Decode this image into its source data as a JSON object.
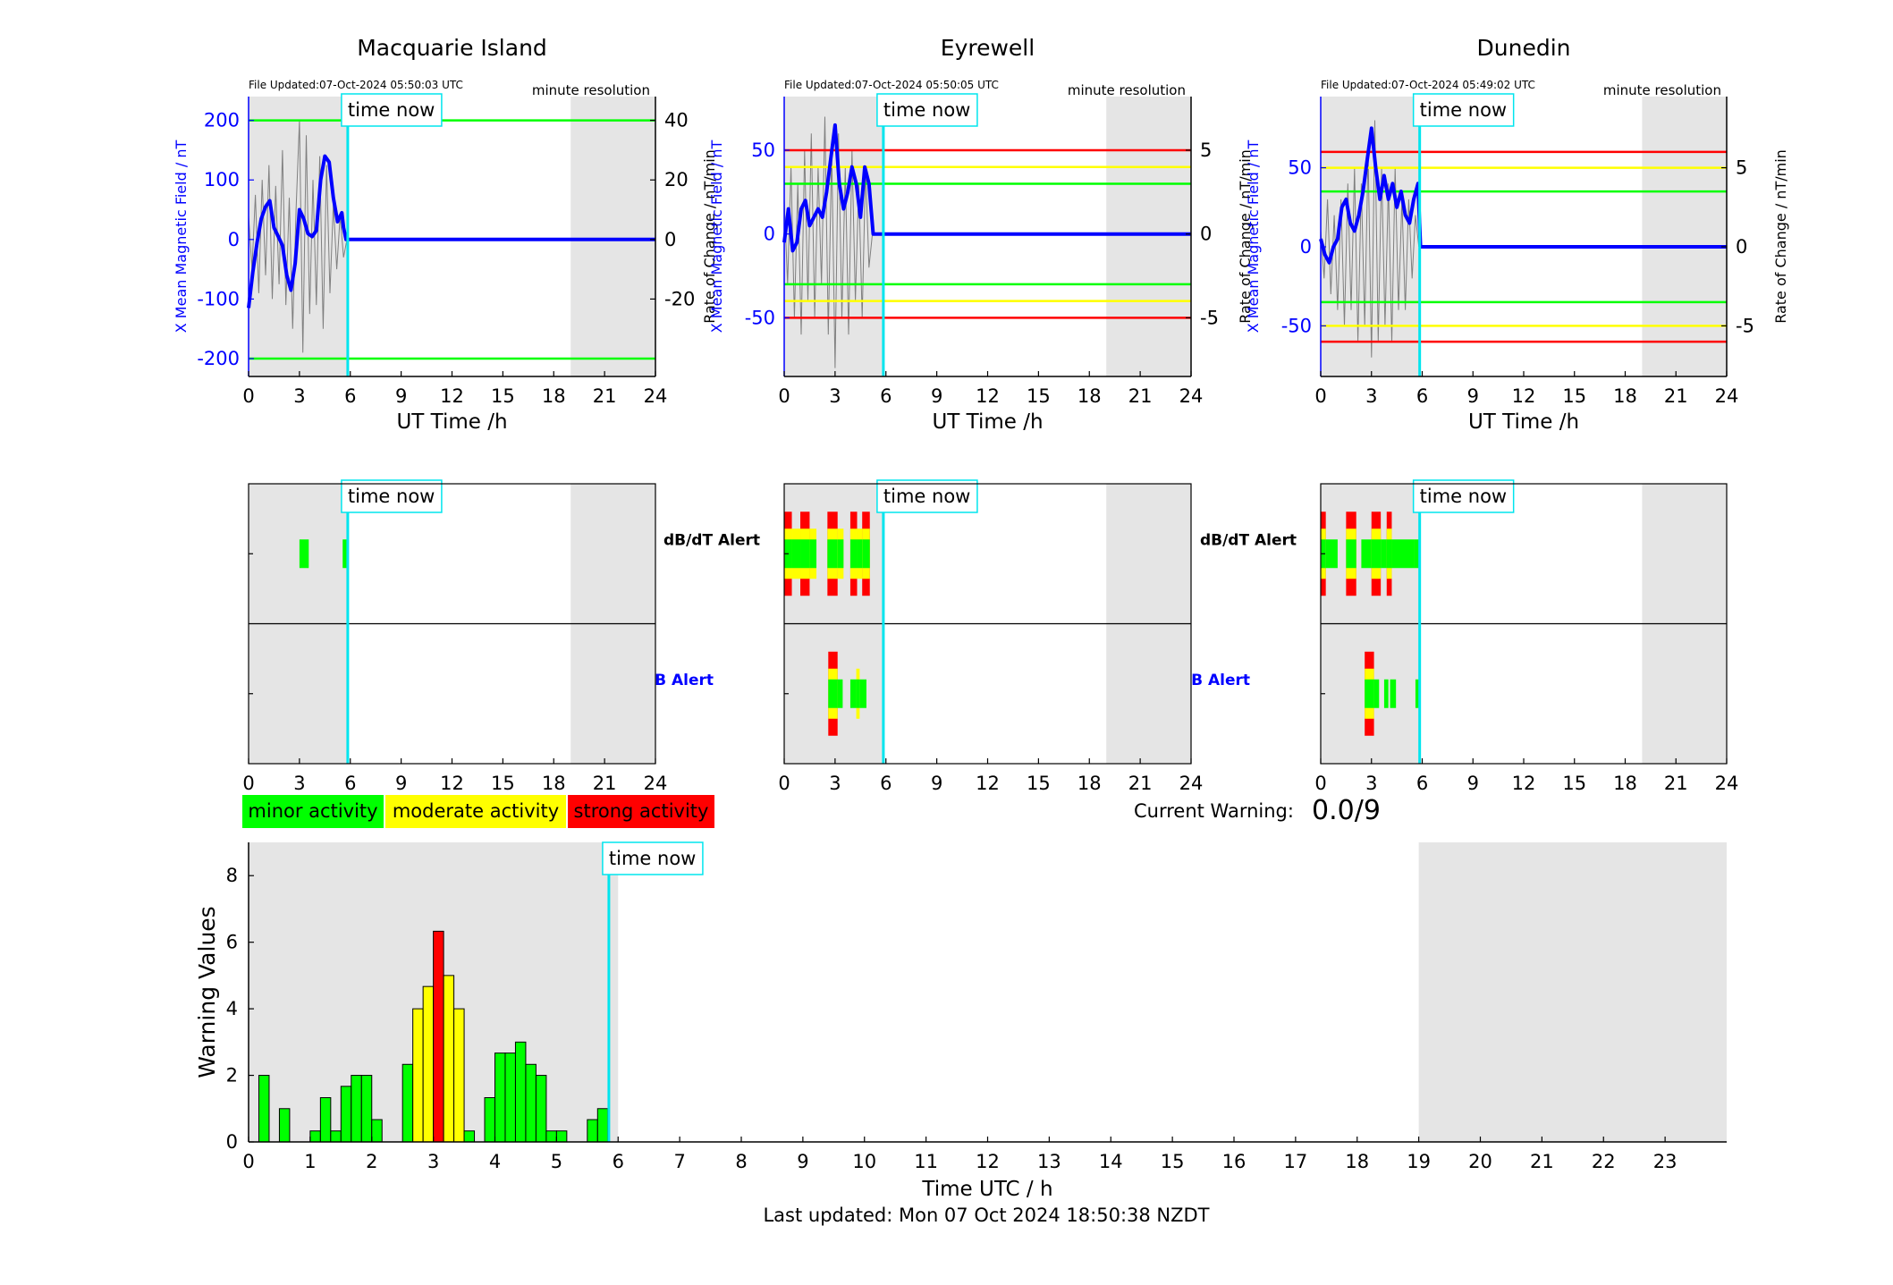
{
  "colors": {
    "grey": "#e5e5e5",
    "blue": "#0000ff",
    "cyan": "#00e5ee",
    "green": "#00ff00",
    "yellow": "#ffff00",
    "red": "#ff0000",
    "black": "#000000"
  },
  "top_labels": {
    "file_prefix": "File Updated:",
    "resolution": "minute resolution",
    "time_now": "time now",
    "xlabel": "UT Time /h",
    "ylabel_left": "X Mean Magnetic Field / nT",
    "ylabel_right": "Rate of Change / nT/min"
  },
  "alert_labels": {
    "dbdt": "dB/dT Alert",
    "b": "B Alert"
  },
  "legend": {
    "minor": "minor activity",
    "moderate": "moderate activity",
    "strong": "strong activity"
  },
  "warning": {
    "label": "Current Warning:",
    "value": "0.0/9"
  },
  "footer": {
    "last_updated": "Last updated: Mon 07 Oct 2024 18:50:38 NZDT"
  },
  "chart_data": [
    {
      "type": "line",
      "title": "Macquarie Island",
      "file_updated": "07-Oct-2024 05:50:03 UTC",
      "xlabel": "UT Time /h",
      "xlim": [
        0,
        24
      ],
      "xticks": [
        0,
        3,
        6,
        9,
        12,
        15,
        18,
        21,
        24
      ],
      "ylabel_left": "X Mean Magnetic Field / nT",
      "ylim_left": [
        -230,
        240
      ],
      "yticks_left": [
        -200,
        -100,
        0,
        100,
        200
      ],
      "ylabel_right": "Rate of Change / nT/min",
      "ylim_right": [
        -46,
        48
      ],
      "yticks_right": [
        -20,
        0,
        20,
        40
      ],
      "time_now": 5.85,
      "shaded_h": [
        [
          0,
          5.85
        ],
        [
          19,
          24
        ]
      ],
      "thresholds": [
        {
          "value": 200,
          "color": "green"
        },
        {
          "value": -200,
          "color": "green"
        }
      ],
      "series": [
        {
          "axis": "left",
          "color": "blue",
          "x": [
            0,
            0.25,
            0.5,
            0.75,
            1.0,
            1.25,
            1.5,
            1.75,
            2.0,
            2.25,
            2.5,
            2.75,
            3.0,
            3.25,
            3.5,
            3.75,
            4.0,
            4.25,
            4.5,
            4.75,
            5.0,
            5.25,
            5.5,
            5.6,
            5.75,
            5.85,
            6.0,
            24.0
          ],
          "y": [
            -115,
            -55,
            -5,
            35,
            55,
            65,
            20,
            5,
            -10,
            -60,
            -85,
            -40,
            50,
            35,
            10,
            5,
            15,
            100,
            140,
            130,
            70,
            30,
            45,
            20,
            0,
            0,
            0,
            0
          ]
        },
        {
          "axis": "right",
          "color": "grey",
          "x": [
            0.0,
            0.2,
            0.4,
            0.6,
            0.8,
            1.0,
            1.2,
            1.4,
            1.6,
            1.8,
            2.0,
            2.2,
            2.4,
            2.6,
            2.8,
            3.0,
            3.2,
            3.4,
            3.6,
            3.8,
            4.0,
            4.2,
            4.4,
            4.6,
            4.8,
            5.0,
            5.2,
            5.4,
            5.6,
            5.8
          ],
          "y": [
            8,
            -10,
            15,
            -18,
            20,
            -12,
            25,
            -20,
            18,
            -15,
            30,
            -22,
            14,
            -30,
            10,
            40,
            -38,
            35,
            -25,
            20,
            -22,
            28,
            -30,
            25,
            -18,
            12,
            -10,
            8,
            -6,
            0
          ]
        }
      ]
    },
    {
      "type": "line",
      "title": "Eyrewell",
      "file_updated": "07-Oct-2024 05:50:05 UTC",
      "xlabel": "UT Time /h",
      "xlim": [
        0,
        24
      ],
      "xticks": [
        0,
        3,
        6,
        9,
        12,
        15,
        18,
        21,
        24
      ],
      "ylabel_left": "X Mean Magnetic Field / nT",
      "ylim_left": [
        -85,
        82
      ],
      "yticks_left": [
        -50,
        0,
        50
      ],
      "ylabel_right": "Rate of Change / nT/min",
      "ylim_right": [
        -8.5,
        8.2
      ],
      "yticks_right": [
        -5,
        0,
        5
      ],
      "time_now": 5.85,
      "shaded_h": [
        [
          0,
          5.85
        ],
        [
          19,
          24
        ]
      ],
      "thresholds": [
        {
          "value": 50,
          "color": "red"
        },
        {
          "value": 40,
          "color": "yellow"
        },
        {
          "value": 30,
          "color": "green"
        },
        {
          "value": -30,
          "color": "green"
        },
        {
          "value": -40,
          "color": "yellow"
        },
        {
          "value": -50,
          "color": "red"
        }
      ],
      "series": [
        {
          "axis": "left",
          "color": "blue",
          "x": [
            0,
            0.25,
            0.5,
            0.75,
            1.0,
            1.25,
            1.5,
            1.75,
            2.0,
            2.25,
            2.5,
            2.75,
            3.0,
            3.25,
            3.5,
            3.75,
            4.0,
            4.25,
            4.5,
            4.75,
            5.0,
            5.25,
            6.0,
            24.0
          ],
          "y": [
            -5,
            15,
            -10,
            -5,
            15,
            20,
            5,
            10,
            15,
            10,
            25,
            45,
            65,
            30,
            15,
            25,
            40,
            30,
            10,
            40,
            30,
            0,
            0,
            0
          ]
        },
        {
          "axis": "right",
          "color": "grey",
          "x": [
            0.0,
            0.2,
            0.4,
            0.6,
            0.8,
            1.0,
            1.2,
            1.4,
            1.6,
            1.8,
            2.0,
            2.2,
            2.4,
            2.6,
            2.8,
            3.0,
            3.2,
            3.4,
            3.6,
            3.8,
            4.0,
            4.2,
            4.4,
            4.6,
            4.8,
            5.0,
            5.2
          ],
          "y": [
            2,
            -3,
            4,
            -5,
            3,
            -6,
            5,
            -4,
            6,
            -5,
            4,
            -3,
            7,
            -6,
            5,
            -8,
            6,
            -5,
            4,
            -6,
            5,
            -4,
            3,
            -5,
            4,
            -2,
            0
          ]
        }
      ]
    },
    {
      "type": "line",
      "title": "Dunedin",
      "file_updated": "07-Oct-2024 05:49:02 UTC",
      "xlabel": "UT Time /h",
      "xlim": [
        0,
        24
      ],
      "xticks": [
        0,
        3,
        6,
        9,
        12,
        15,
        18,
        21,
        24
      ],
      "ylabel_left": "X Mean Magnetic Field / nT",
      "ylim_left": [
        -82,
        95
      ],
      "yticks_left": [
        -50,
        0,
        50
      ],
      "ylabel_right": "Rate of Change / nT/min",
      "ylim_right": [
        -8.2,
        9.5
      ],
      "yticks_right": [
        -5,
        0,
        5
      ],
      "time_now": 5.85,
      "shaded_h": [
        [
          0,
          5.85
        ],
        [
          19,
          24
        ]
      ],
      "thresholds": [
        {
          "value": 60,
          "color": "red"
        },
        {
          "value": 50,
          "color": "yellow"
        },
        {
          "value": 35,
          "color": "green"
        },
        {
          "value": -35,
          "color": "green"
        },
        {
          "value": -50,
          "color": "yellow"
        },
        {
          "value": -60,
          "color": "red"
        }
      ],
      "series": [
        {
          "axis": "left",
          "color": "blue",
          "x": [
            0,
            0.25,
            0.5,
            0.75,
            1.0,
            1.25,
            1.5,
            1.75,
            2.0,
            2.25,
            2.5,
            2.75,
            3.0,
            3.25,
            3.5,
            3.75,
            4.0,
            4.25,
            4.5,
            4.75,
            5.0,
            5.25,
            5.5,
            5.75,
            5.9,
            6.0,
            24.0
          ],
          "y": [
            5,
            -5,
            -10,
            0,
            5,
            25,
            30,
            15,
            10,
            20,
            35,
            55,
            75,
            50,
            30,
            45,
            30,
            40,
            25,
            35,
            20,
            15,
            30,
            40,
            0,
            0,
            0
          ]
        },
        {
          "axis": "right",
          "color": "grey",
          "x": [
            0.0,
            0.2,
            0.4,
            0.6,
            0.8,
            1.0,
            1.2,
            1.4,
            1.6,
            1.8,
            2.0,
            2.2,
            2.4,
            2.6,
            2.8,
            3.0,
            3.2,
            3.4,
            3.6,
            3.8,
            4.0,
            4.2,
            4.4,
            4.6,
            4.8,
            5.0,
            5.2,
            5.4,
            5.6,
            5.8
          ],
          "y": [
            1,
            -2,
            3,
            -3,
            2,
            -4,
            3,
            -5,
            4,
            -4,
            5,
            -6,
            4,
            -5,
            6,
            -7,
            8,
            -6,
            5,
            -5,
            4,
            -6,
            5,
            -4,
            3,
            -4,
            3,
            -2,
            2,
            0
          ]
        }
      ]
    },
    {
      "type": "timeline",
      "station": "Macquarie Island",
      "xlim": [
        0,
        24
      ],
      "xticks": [
        0,
        3,
        6,
        9,
        12,
        15,
        18,
        21,
        24
      ],
      "time_now": 5.85,
      "shaded_h": [
        [
          0,
          5.85
        ],
        [
          19,
          24
        ]
      ],
      "rows": [
        "dbdt",
        "b"
      ],
      "dbdt": [
        {
          "x": 3.0,
          "w": 0.55,
          "level": 1
        },
        {
          "x": 5.55,
          "w": 0.3,
          "level": 1
        }
      ],
      "b": []
    },
    {
      "type": "timeline",
      "station": "Eyrewell",
      "xlim": [
        0,
        24
      ],
      "xticks": [
        0,
        3,
        6,
        9,
        12,
        15,
        18,
        21,
        24
      ],
      "time_now": 5.85,
      "shaded_h": [
        [
          0,
          5.85
        ],
        [
          19,
          24
        ]
      ],
      "rows": [
        "dbdt",
        "b"
      ],
      "dbdt": [
        {
          "x": 0.0,
          "w": 0.45,
          "level": 3
        },
        {
          "x": 0.45,
          "w": 0.5,
          "level": 2
        },
        {
          "x": 0.95,
          "w": 0.55,
          "level": 3
        },
        {
          "x": 1.5,
          "w": 0.4,
          "level": 2
        },
        {
          "x": 2.55,
          "w": 0.6,
          "level": 3
        },
        {
          "x": 3.15,
          "w": 0.35,
          "level": 2
        },
        {
          "x": 3.9,
          "w": 0.4,
          "level": 3
        },
        {
          "x": 4.3,
          "w": 0.3,
          "level": 2
        },
        {
          "x": 4.6,
          "w": 0.45,
          "level": 3
        }
      ],
      "b": [
        {
          "x": 2.6,
          "w": 0.55,
          "level": 3
        },
        {
          "x": 3.15,
          "w": 0.3,
          "level": 1
        },
        {
          "x": 3.9,
          "w": 0.35,
          "level": 1
        },
        {
          "x": 4.25,
          "w": 0.2,
          "level": 2
        },
        {
          "x": 4.45,
          "w": 0.4,
          "level": 1
        }
      ]
    },
    {
      "type": "timeline",
      "station": "Dunedin",
      "xlim": [
        0,
        24
      ],
      "xticks": [
        0,
        3,
        6,
        9,
        12,
        15,
        18,
        21,
        24
      ],
      "time_now": 5.85,
      "shaded_h": [
        [
          0,
          5.85
        ],
        [
          19,
          24
        ]
      ],
      "rows": [
        "dbdt",
        "b"
      ],
      "dbdt": [
        {
          "x": 0.0,
          "w": 0.3,
          "level": 3
        },
        {
          "x": 0.3,
          "w": 0.7,
          "level": 1
        },
        {
          "x": 1.5,
          "w": 0.6,
          "level": 3
        },
        {
          "x": 2.4,
          "w": 0.6,
          "level": 1
        },
        {
          "x": 3.0,
          "w": 0.55,
          "level": 3
        },
        {
          "x": 3.55,
          "w": 0.35,
          "level": 1
        },
        {
          "x": 3.9,
          "w": 0.3,
          "level": 3
        },
        {
          "x": 4.2,
          "w": 1.3,
          "level": 1
        },
        {
          "x": 5.5,
          "w": 0.4,
          "level": 1
        }
      ],
      "b": [
        {
          "x": 2.6,
          "w": 0.55,
          "level": 3
        },
        {
          "x": 3.15,
          "w": 0.3,
          "level": 1
        },
        {
          "x": 3.75,
          "w": 0.25,
          "level": 1
        },
        {
          "x": 4.1,
          "w": 0.35,
          "level": 1
        },
        {
          "x": 5.6,
          "w": 0.25,
          "level": 1
        }
      ]
    },
    {
      "type": "bar",
      "xlabel": "Time UTC / h",
      "ylabel": "Warning Values",
      "xlim": [
        0,
        24
      ],
      "xticks": [
        0,
        1,
        2,
        3,
        4,
        5,
        6,
        7,
        8,
        9,
        10,
        11,
        12,
        13,
        14,
        15,
        16,
        17,
        18,
        19,
        20,
        21,
        22,
        23
      ],
      "ylim": [
        0,
        9
      ],
      "yticks": [
        0,
        2,
        4,
        6,
        8
      ],
      "time_now": 5.85,
      "shaded_h": [
        [
          0,
          6.0
        ],
        [
          19,
          24
        ]
      ],
      "bin_width_h": 0.1667,
      "bins": [
        {
          "x": 0.0,
          "v": 0.0
        },
        {
          "x": 0.1667,
          "v": 2.0
        },
        {
          "x": 0.3333,
          "v": 0.0
        },
        {
          "x": 0.5,
          "v": 1.0
        },
        {
          "x": 0.6667,
          "v": 0.0
        },
        {
          "x": 0.8333,
          "v": 0.0
        },
        {
          "x": 1.0,
          "v": 0.33
        },
        {
          "x": 1.1667,
          "v": 1.33
        },
        {
          "x": 1.3333,
          "v": 0.33
        },
        {
          "x": 1.5,
          "v": 1.67
        },
        {
          "x": 1.6667,
          "v": 2.0
        },
        {
          "x": 1.8333,
          "v": 2.0
        },
        {
          "x": 2.0,
          "v": 0.67
        },
        {
          "x": 2.1667,
          "v": 0.0
        },
        {
          "x": 2.3333,
          "v": 0.0
        },
        {
          "x": 2.5,
          "v": 2.33
        },
        {
          "x": 2.6667,
          "v": 4.0
        },
        {
          "x": 2.8333,
          "v": 4.67
        },
        {
          "x": 3.0,
          "v": 6.33
        },
        {
          "x": 3.1667,
          "v": 5.0
        },
        {
          "x": 3.3333,
          "v": 4.0
        },
        {
          "x": 3.5,
          "v": 0.33
        },
        {
          "x": 3.6667,
          "v": 0.0
        },
        {
          "x": 3.8333,
          "v": 1.33
        },
        {
          "x": 4.0,
          "v": 2.67
        },
        {
          "x": 4.1667,
          "v": 2.67
        },
        {
          "x": 4.3333,
          "v": 3.0
        },
        {
          "x": 4.5,
          "v": 2.33
        },
        {
          "x": 4.6667,
          "v": 2.0
        },
        {
          "x": 4.8333,
          "v": 0.33
        },
        {
          "x": 5.0,
          "v": 0.33
        },
        {
          "x": 5.1667,
          "v": 0.0
        },
        {
          "x": 5.3333,
          "v": 0.0
        },
        {
          "x": 5.5,
          "v": 0.67
        },
        {
          "x": 5.6667,
          "v": 1.0
        }
      ],
      "level_rule": "green < 4 <= yellow < 6 <= red"
    }
  ]
}
